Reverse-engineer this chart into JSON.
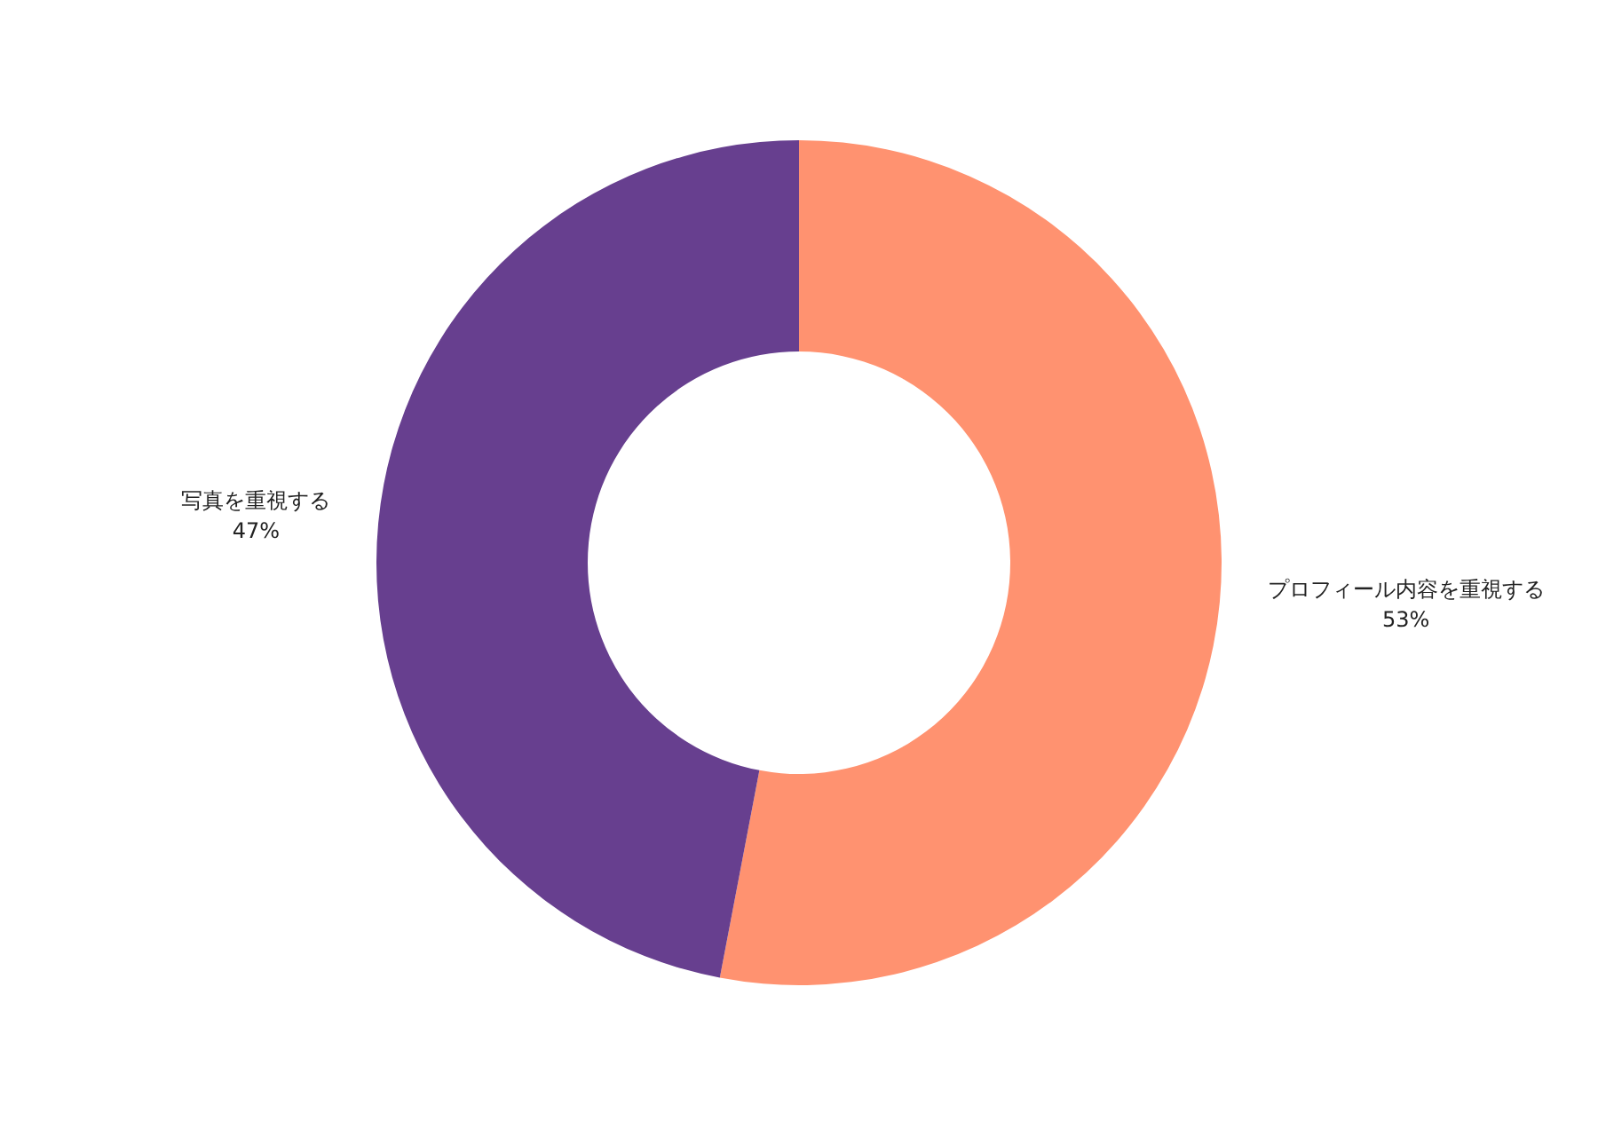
{
  "chart_data": {
    "type": "donut",
    "categories": [
      "プロフィール内容を重視する",
      "写真を重視する"
    ],
    "values": [
      53,
      47
    ],
    "colors": [
      "#ff9270",
      "#673f8f"
    ],
    "value_labels": [
      "53%",
      "47%"
    ]
  }
}
